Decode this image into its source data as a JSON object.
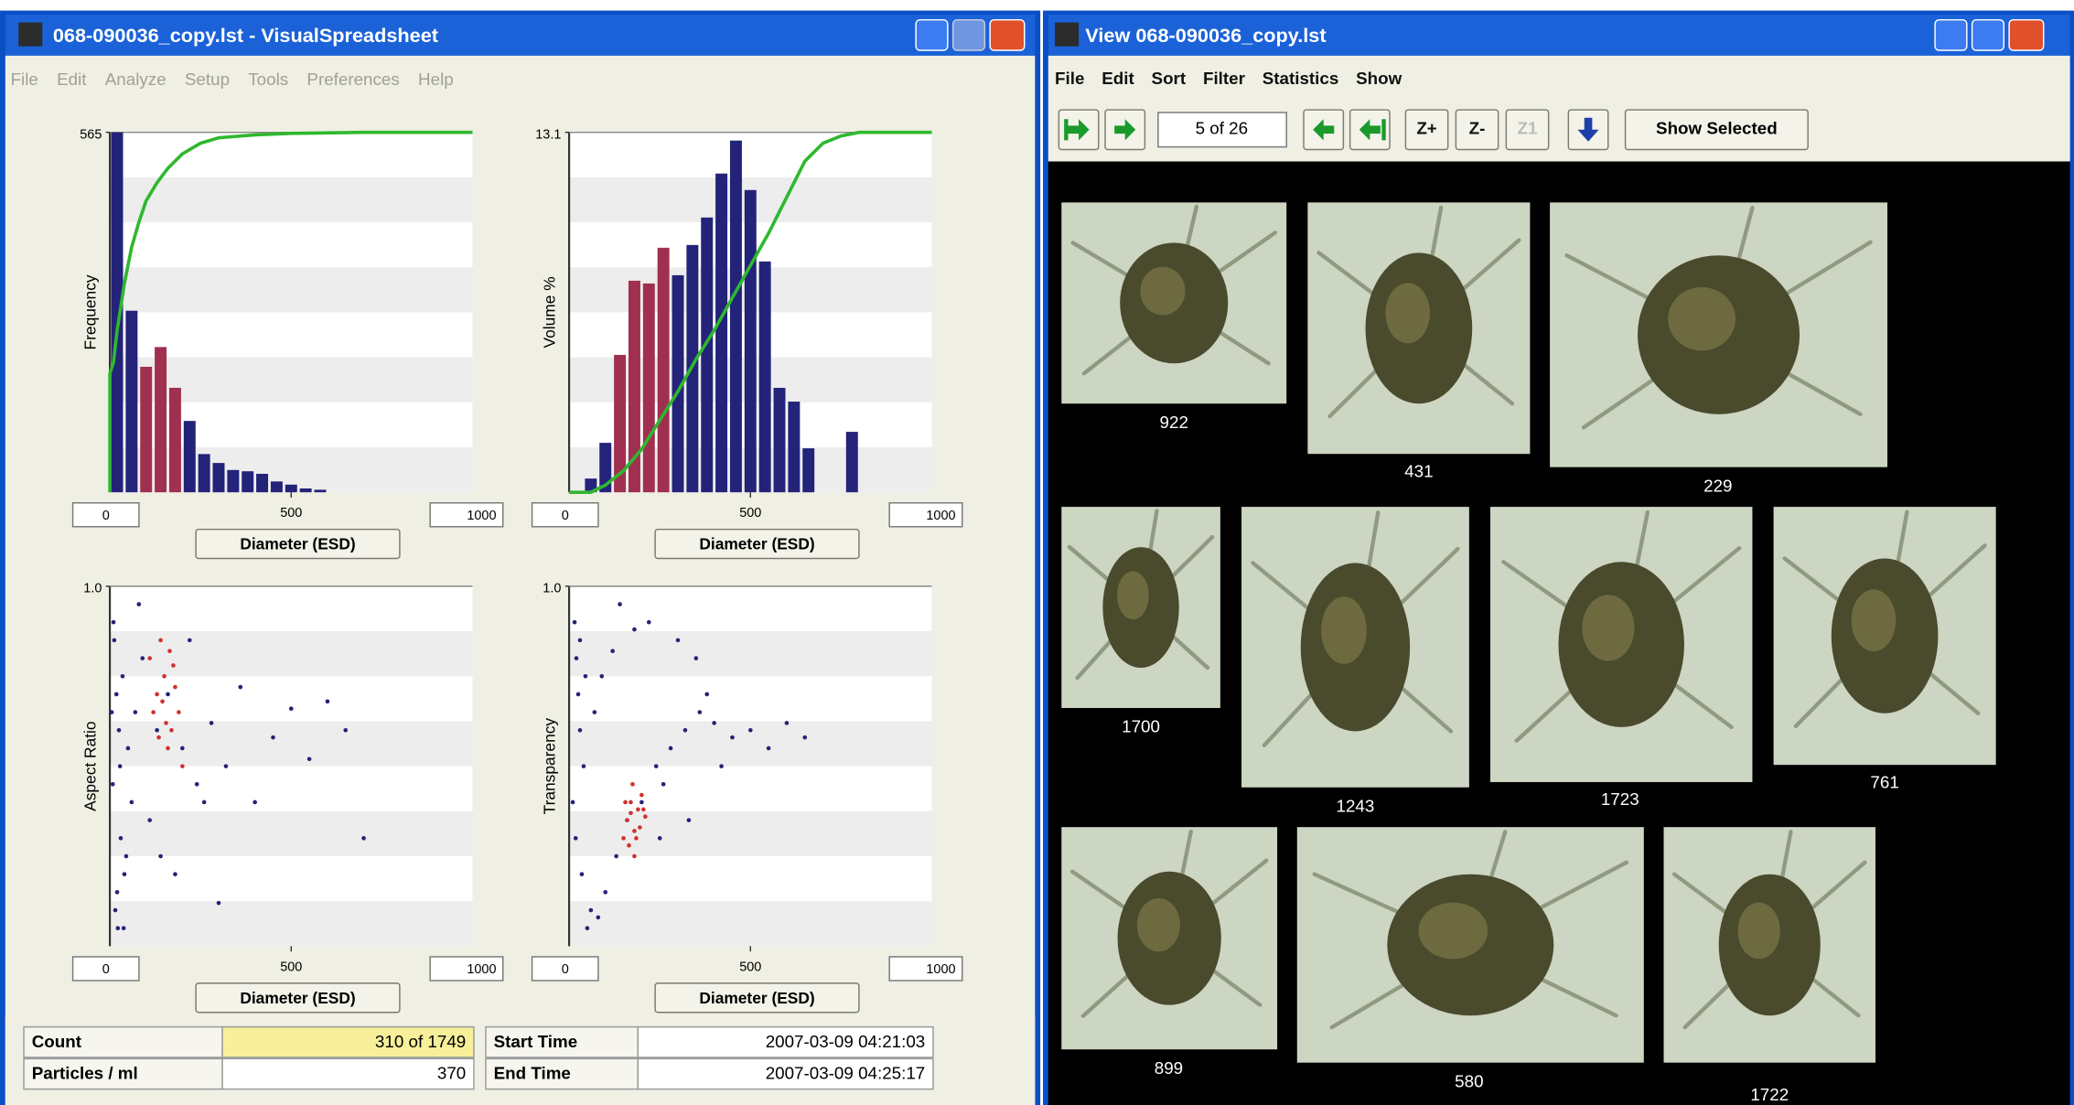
{
  "left_window": {
    "title": "068-090036_copy.lst - VisualSpreadsheet",
    "menu": [
      "File",
      "Edit",
      "Analyze",
      "Setup",
      "Tools",
      "Preferences",
      "Help"
    ],
    "charts": [
      {
        "type": "histogram",
        "y_label": "Frequency",
        "x_button": "Diameter (ESD)",
        "xlim": [
          0,
          1000
        ],
        "xticks": [
          0,
          500,
          1000
        ],
        "ylim": [
          0,
          565
        ],
        "yticks": [
          565
        ],
        "bins": [
          0,
          40,
          80,
          120,
          160,
          200,
          240,
          280,
          320,
          360,
          400,
          440,
          480,
          520,
          560,
          600
        ],
        "values": [
          565,
          285,
          197,
          228,
          164,
          112,
          60,
          46,
          35,
          33,
          29,
          17,
          12,
          6,
          4
        ],
        "colors": [
          "#23237a",
          "#23237a",
          "#a03050",
          "#a03050",
          "#a03050",
          "#23237a",
          "#23237a",
          "#23237a",
          "#23237a",
          "#23237a",
          "#23237a",
          "#23237a",
          "#23237a",
          "#23237a",
          "#23237a"
        ],
        "cumulative": {
          "color": "#2eb82e",
          "ylim": [
            0,
            100
          ],
          "x": [
            0,
            0,
            10,
            20,
            40,
            60,
            80,
            100,
            130,
            160,
            200,
            250,
            300,
            400,
            500,
            700,
            1000
          ],
          "values": [
            0,
            33,
            36,
            45,
            58,
            68,
            75,
            81,
            86,
            90,
            94,
            97,
            98.5,
            99.3,
            99.7,
            100,
            100
          ]
        }
      },
      {
        "type": "histogram",
        "y_label": "Volume %",
        "x_button": "Diameter (ESD)",
        "xlim": [
          0,
          1000
        ],
        "xticks": [
          0,
          500,
          1000
        ],
        "ylim": [
          0,
          13.1
        ],
        "yticks": [
          13.1
        ],
        "bins": [
          40,
          80,
          120,
          160,
          200,
          240,
          280,
          320,
          360,
          400,
          440,
          480,
          520,
          560,
          600,
          640,
          680,
          720,
          760,
          800
        ],
        "values": [
          0.5,
          1.8,
          5.0,
          7.7,
          7.6,
          8.9,
          7.9,
          9.0,
          10.0,
          11.6,
          12.8,
          11.0,
          8.4,
          3.8,
          3.3,
          1.6,
          0,
          0,
          2.2
        ],
        "colors": [
          "#23237a",
          "#23237a",
          "#a03050",
          "#a03050",
          "#a03050",
          "#a03050",
          "#23237a",
          "#23237a",
          "#23237a",
          "#23237a",
          "#23237a",
          "#23237a",
          "#23237a",
          "#23237a",
          "#23237a",
          "#23237a",
          "#23237a",
          "#23237a",
          "#23237a"
        ],
        "cumulative": {
          "color": "#2eb82e",
          "ylim": [
            0,
            100
          ],
          "x": [
            0,
            60,
            100,
            150,
            200,
            250,
            300,
            350,
            400,
            450,
            500,
            550,
            600,
            650,
            700,
            750,
            800,
            1000
          ],
          "values": [
            0,
            0,
            2,
            6,
            12,
            20,
            28,
            37,
            45,
            54,
            63,
            72,
            82,
            92,
            97,
            99,
            100,
            100
          ]
        }
      },
      {
        "type": "scatter",
        "y_label": "Aspect Ratio",
        "x_button": "Diameter (ESD)",
        "xlim": [
          0,
          1000
        ],
        "xticks": [
          0,
          500,
          1000
        ],
        "ylim": [
          0,
          1
        ],
        "yticks": [
          {
            "value": 1,
            "label": "1.0"
          }
        ],
        "series": [
          {
            "color": "#23237a",
            "x": [
              12,
              18,
              25,
              8,
              30,
              40,
              15,
              22,
              35,
              50,
              60,
              45,
              20,
              10,
              28,
              70,
              90,
              110,
              130,
              160,
              200,
              240,
              280,
              320,
              360,
              400,
              450,
              500,
              550,
              600,
              650,
              700,
              180,
              220,
              260,
              300,
              80,
              140,
              5,
              38
            ],
            "values": [
              0.85,
              0.7,
              0.6,
              0.45,
              0.3,
              0.2,
              0.1,
              0.05,
              0.75,
              0.55,
              0.4,
              0.25,
              0.15,
              0.9,
              0.5,
              0.65,
              0.8,
              0.35,
              0.6,
              0.7,
              0.55,
              0.45,
              0.62,
              0.5,
              0.72,
              0.4,
              0.58,
              0.66,
              0.52,
              0.68,
              0.6,
              0.3,
              0.2,
              0.85,
              0.4,
              0.12,
              0.95,
              0.25,
              0.65,
              0.05
            ]
          },
          {
            "color": "#d03030",
            "x": [
              110,
              130,
              150,
              170,
              190,
              140,
              160,
              120,
              180,
              200,
              135,
              165,
              145,
              175,
              155
            ],
            "values": [
              0.8,
              0.7,
              0.75,
              0.6,
              0.65,
              0.85,
              0.55,
              0.65,
              0.72,
              0.5,
              0.58,
              0.82,
              0.68,
              0.78,
              0.62
            ]
          }
        ]
      },
      {
        "type": "scatter",
        "y_label": "Transparency",
        "x_button": "Diameter (ESD)",
        "xlim": [
          0,
          1000
        ],
        "xticks": [
          0,
          500,
          1000
        ],
        "ylim": [
          0,
          1
        ],
        "yticks": [
          {
            "value": 1,
            "label": "1.0"
          }
        ],
        "series": [
          {
            "color": "#23237a",
            "x": [
              15,
              20,
              25,
              30,
              40,
              10,
              18,
              35,
              60,
              80,
              100,
              130,
              160,
              200,
              240,
              280,
              320,
              360,
              400,
              450,
              500,
              550,
              600,
              650,
              220,
              300,
              350,
              180,
              120,
              90,
              50,
              70,
              260,
              420,
              380,
              140,
              30,
              45,
              250,
              330
            ],
            "values": [
              0.9,
              0.8,
              0.7,
              0.6,
              0.5,
              0.4,
              0.3,
              0.2,
              0.1,
              0.08,
              0.15,
              0.25,
              0.35,
              0.4,
              0.5,
              0.55,
              0.6,
              0.65,
              0.62,
              0.58,
              0.6,
              0.55,
              0.62,
              0.58,
              0.9,
              0.85,
              0.8,
              0.88,
              0.82,
              0.75,
              0.05,
              0.65,
              0.45,
              0.5,
              0.7,
              0.95,
              0.85,
              0.75,
              0.3,
              0.35
            ]
          },
          {
            "color": "#d03030",
            "x": [
              150,
              160,
              170,
              180,
              190,
              200,
              210,
              165,
              175,
              185,
              195,
              155,
              205,
              180,
              170
            ],
            "values": [
              0.3,
              0.35,
              0.4,
              0.32,
              0.38,
              0.42,
              0.36,
              0.28,
              0.45,
              0.3,
              0.33,
              0.4,
              0.38,
              0.25,
              0.37
            ]
          }
        ]
      }
    ],
    "stats": [
      {
        "label": "Count",
        "value": "310 of 1749"
      },
      {
        "label": "Particles / ml",
        "value": 370
      }
    ],
    "times": [
      {
        "label": "Start Time",
        "value": "2007-03-09 04:21:03"
      },
      {
        "label": "End Time",
        "value": "2007-03-09 04:25:17"
      }
    ]
  },
  "right_window": {
    "title": "View 068-090036_copy.lst",
    "menu": [
      "File",
      "Edit",
      "Sort",
      "Filter",
      "Statistics",
      "Show"
    ],
    "toolbar": {
      "position": "5 of 26",
      "zoom_buttons": [
        "Z+",
        "Z-",
        "Z1"
      ],
      "show_selected": "Show Selected"
    },
    "images": [
      {
        "label": 922
      },
      {
        "label": 431
      },
      {
        "label": 229
      },
      {
        "label": 1700
      },
      {
        "label": 1243
      },
      {
        "label": 1723
      },
      {
        "label": 761
      },
      {
        "label": 899
      },
      {
        "label": 580
      },
      {
        "label": 1722
      }
    ]
  }
}
